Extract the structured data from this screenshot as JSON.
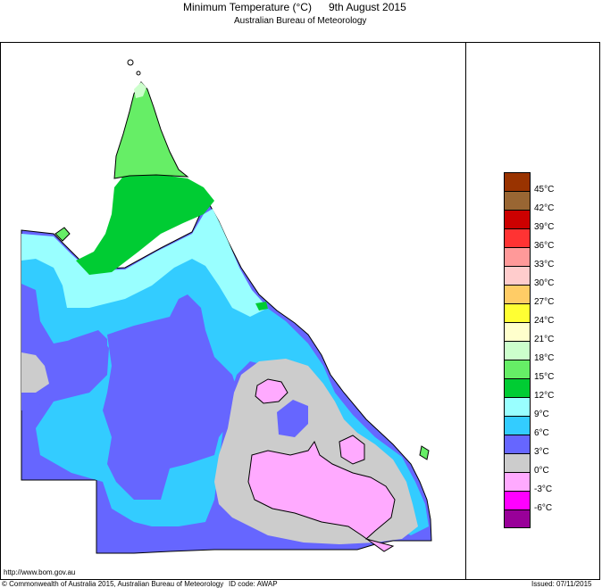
{
  "header": {
    "title": "Minimum Temperature (°C)",
    "date": "9th August 2015",
    "subtitle": "Australian Bureau of Meteorology"
  },
  "legend": {
    "labels": [
      "45°C",
      "42°C",
      "39°C",
      "36°C",
      "33°C",
      "30°C",
      "27°C",
      "24°C",
      "21°C",
      "18°C",
      "15°C",
      "12°C",
      "9°C",
      "6°C",
      "3°C",
      "0°C",
      "-3°C",
      "-6°C"
    ],
    "colors": [
      "#993300",
      "#996633",
      "#cc0000",
      "#ff3333",
      "#ff9999",
      "#ffcccc",
      "#ffcc66",
      "#ffff33",
      "#ffffcc",
      "#ccffcc",
      "#66ee66",
      "#00cc33",
      "#99ffff",
      "#33ccff",
      "#6666ff",
      "#cccccc",
      "#ffaaff",
      "#ff00ff",
      "#990099"
    ]
  },
  "map_colors": {
    "green15": "#00cc33",
    "green18": "#66ee66",
    "lightgreen21": "#ccffcc",
    "cyan9": "#99ffff",
    "blue6": "#33ccff",
    "purple3": "#6666ff",
    "grey0": "#cccccc",
    "pink_neg3": "#ffaaff"
  },
  "footer": {
    "url": "http://www.bom.gov.au",
    "copyright": "© Commonwealth of Australia 2015, Australian Bureau of Meteorology",
    "id_code": "ID code: AWAP",
    "issued": "Issued: 07/11/2015"
  }
}
